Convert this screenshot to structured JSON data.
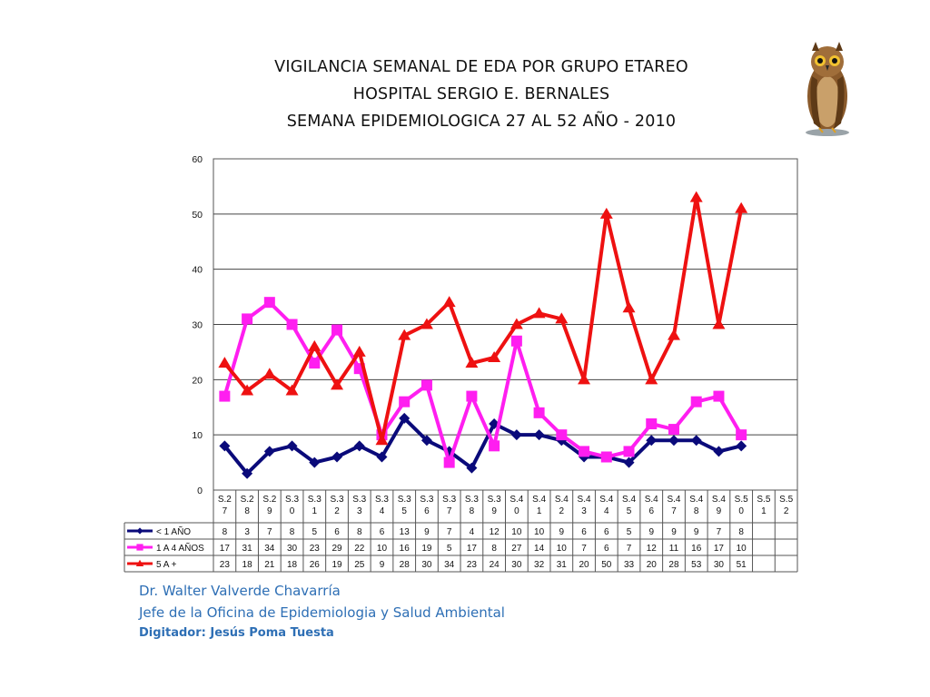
{
  "slide": {
    "title_line1": "VIGILANCIA SEMANAL DE EDA POR GRUPO ETAREO",
    "title_line2": "HOSPITAL SERGIO E. BERNALES",
    "title_line3": "SEMANA EPIDEMIOLOGICA 27 AL 52 AÑO - 2010",
    "credit_name": "Dr.  Walter Valverde Chavarría",
    "credit_role": "Jefe de la Oficina de Epidemiologia y  Salud Ambiental",
    "credit_digitizer": "Digitador: Jesús Poma Tuesta",
    "decor_icon": "owl-illustration"
  },
  "chart_data": {
    "type": "line",
    "title": "",
    "xlabel": "",
    "ylabel": "",
    "ylim": [
      0,
      60
    ],
    "yticks": [
      0,
      10,
      20,
      30,
      40,
      50,
      60
    ],
    "grid": true,
    "legend": "data-table-below",
    "categories": [
      [
        "S.2",
        "7"
      ],
      [
        "S.2",
        "8"
      ],
      [
        "S.2",
        "9"
      ],
      [
        "S.3",
        "0"
      ],
      [
        "S.3",
        "1"
      ],
      [
        "S.3",
        "2"
      ],
      [
        "S.3",
        "3"
      ],
      [
        "S.3",
        "4"
      ],
      [
        "S.3",
        "5"
      ],
      [
        "S.3",
        "6"
      ],
      [
        "S.3",
        "7"
      ],
      [
        "S.3",
        "8"
      ],
      [
        "S.3",
        "9"
      ],
      [
        "S.4",
        "0"
      ],
      [
        "S.4",
        "1"
      ],
      [
        "S.4",
        "2"
      ],
      [
        "S.4",
        "3"
      ],
      [
        "S.4",
        "4"
      ],
      [
        "S.4",
        "5"
      ],
      [
        "S.4",
        "6"
      ],
      [
        "S.4",
        "7"
      ],
      [
        "S.4",
        "8"
      ],
      [
        "S.4",
        "9"
      ],
      [
        "S.5",
        "0"
      ],
      [
        "S.5",
        "1"
      ],
      [
        "S.5",
        "2"
      ]
    ],
    "series": [
      {
        "name": "< 1 AÑO",
        "color": "#0a0a7a",
        "marker": "diamond",
        "values": [
          8,
          3,
          7,
          8,
          5,
          6,
          8,
          6,
          13,
          9,
          7,
          4,
          12,
          10,
          10,
          9,
          6,
          6,
          5,
          9,
          9,
          9,
          7,
          8,
          null,
          null
        ]
      },
      {
        "name": "1 A 4 AÑOS",
        "color": "#ff1ef0",
        "marker": "square",
        "values": [
          17,
          31,
          34,
          30,
          23,
          29,
          22,
          10,
          16,
          19,
          5,
          17,
          8,
          27,
          14,
          10,
          7,
          6,
          7,
          12,
          11,
          16,
          17,
          10,
          null,
          null
        ]
      },
      {
        "name": "5 A +",
        "color": "#ee1111",
        "marker": "triangle",
        "values": [
          23,
          18,
          21,
          18,
          26,
          19,
          25,
          9,
          28,
          30,
          34,
          23,
          24,
          30,
          32,
          31,
          20,
          50,
          33,
          20,
          28,
          53,
          30,
          51,
          null,
          null
        ]
      }
    ]
  }
}
